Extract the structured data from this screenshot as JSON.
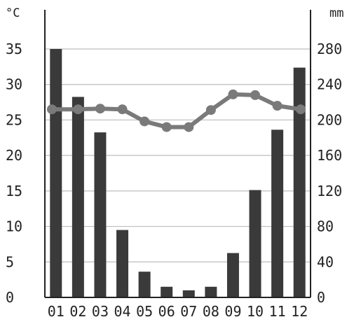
{
  "chart_data": {
    "type": "bar+line",
    "title": "",
    "categories": [
      "01",
      "02",
      "03",
      "04",
      "05",
      "06",
      "07",
      "08",
      "09",
      "10",
      "11",
      "12"
    ],
    "left_axis": {
      "unit": "°C",
      "ylim": [
        0,
        35
      ],
      "ticks": [
        "0",
        "5",
        "10",
        "15",
        "20",
        "25",
        "30",
        "35"
      ]
    },
    "right_axis": {
      "unit": "mm",
      "ylim": [
        0,
        280
      ],
      "ticks": [
        "0",
        "40",
        "80",
        "120",
        "160",
        "200",
        "240",
        "280"
      ]
    },
    "series": [
      {
        "kind": "bar",
        "axis": "right",
        "values": [
          280,
          226,
          186,
          76,
          29,
          12,
          8,
          12,
          50,
          121,
          189,
          259
        ]
      },
      {
        "kind": "line",
        "axis": "left",
        "values": [
          26.5,
          26.5,
          26.6,
          26.5,
          24.8,
          24.0,
          24.0,
          26.4,
          28.6,
          28.5,
          27.0,
          26.5
        ]
      }
    ],
    "grid": true,
    "colors": {
      "bar": "#3a3a3a",
      "line": "#7a7a7a",
      "grid": "#bdbdbd",
      "axis": "#222222"
    }
  }
}
